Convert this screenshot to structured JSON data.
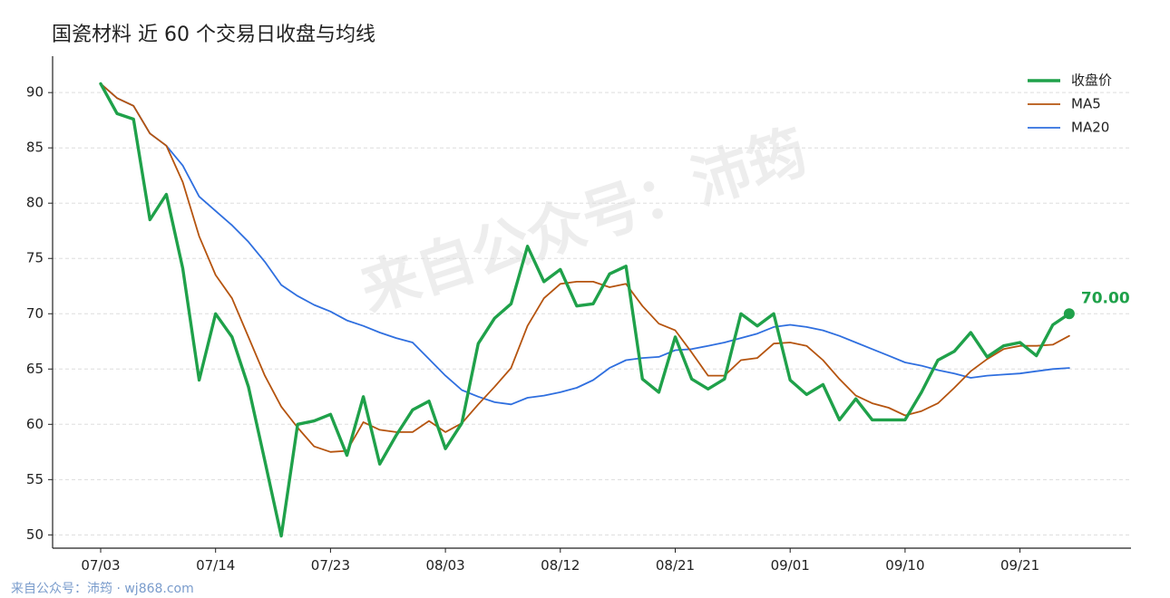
{
  "chart_data": {
    "type": "line",
    "title": "国瓷材料 近 60 个交易日收盘与均线",
    "x_tick_labels": [
      "07/03",
      "07/14",
      "07/23",
      "08/03",
      "08/12",
      "08/21",
      "09/01",
      "09/10",
      "09/21"
    ],
    "y_tick_labels": [
      "50",
      "55",
      "60",
      "65",
      "70",
      "75",
      "80",
      "85",
      "90"
    ],
    "ylim": [
      48.8,
      92.8
    ],
    "grid": true,
    "legend_position": "top-right",
    "last_value_label": "70.00",
    "series": [
      {
        "name": "收盘价",
        "color": "#1fa14a",
        "values": [
          90.8,
          88.1,
          87.6,
          78.5,
          80.8,
          74.1,
          64.0,
          70.0,
          67.9,
          63.4,
          56.7,
          49.9,
          60.0,
          60.3,
          60.9,
          57.2,
          62.5,
          56.4,
          59.0,
          61.3,
          62.1,
          57.8,
          60.1,
          67.3,
          69.6,
          70.9,
          76.1,
          72.9,
          74.0,
          70.7,
          70.9,
          73.6,
          74.3,
          64.1,
          62.9,
          67.9,
          64.1,
          63.2,
          64.1,
          70.0,
          68.9,
          70.0,
          64.0,
          62.7,
          63.6,
          60.4,
          62.3,
          60.4,
          60.4,
          60.4,
          62.9,
          65.8,
          66.6,
          68.3,
          66.1,
          67.1,
          67.4,
          66.2,
          69.0,
          70.0
        ]
      },
      {
        "name": "MA5",
        "color": "#b5540f",
        "values": [
          90.8,
          89.5,
          88.8,
          86.3,
          85.2,
          81.9,
          77.0,
          73.5,
          71.4,
          67.9,
          64.4,
          61.6,
          59.7,
          58.0,
          57.5,
          57.6,
          60.2,
          59.5,
          59.3,
          59.3,
          60.3,
          59.3,
          60.1,
          61.8,
          63.4,
          65.1,
          68.9,
          71.4,
          72.7,
          72.9,
          72.9,
          72.4,
          72.7,
          70.7,
          69.1,
          68.5,
          66.5,
          64.4,
          64.4,
          65.8,
          66.0,
          67.3,
          67.4,
          67.1,
          65.8,
          64.1,
          62.6,
          61.9,
          61.5,
          60.8,
          61.2,
          61.9,
          63.3,
          64.8,
          65.9,
          66.8,
          67.1,
          67.1,
          67.2,
          68.0
        ]
      },
      {
        "name": "MA20",
        "color": "#2f6fdf",
        "values": [
          90.8,
          89.5,
          88.8,
          86.3,
          85.2,
          83.4,
          80.6,
          79.3,
          78.0,
          76.5,
          74.7,
          72.6,
          71.6,
          70.8,
          70.2,
          69.4,
          68.9,
          68.3,
          67.8,
          67.4,
          65.9,
          64.4,
          63.1,
          62.5,
          62.0,
          61.8,
          62.4,
          62.6,
          62.9,
          63.3,
          64.0,
          65.1,
          65.8,
          66.0,
          66.1,
          66.7,
          66.8,
          67.1,
          67.4,
          67.8,
          68.2,
          68.8,
          69.0,
          68.8,
          68.5,
          68.0,
          67.4,
          66.8,
          66.2,
          65.6,
          65.3,
          64.9,
          64.6,
          64.2,
          64.4,
          64.5,
          64.6,
          64.8,
          65.0,
          65.1
        ]
      }
    ]
  },
  "watermark": "来自公众号：沛筠",
  "footer": "来自公众号：沛筠 · wj868.com"
}
